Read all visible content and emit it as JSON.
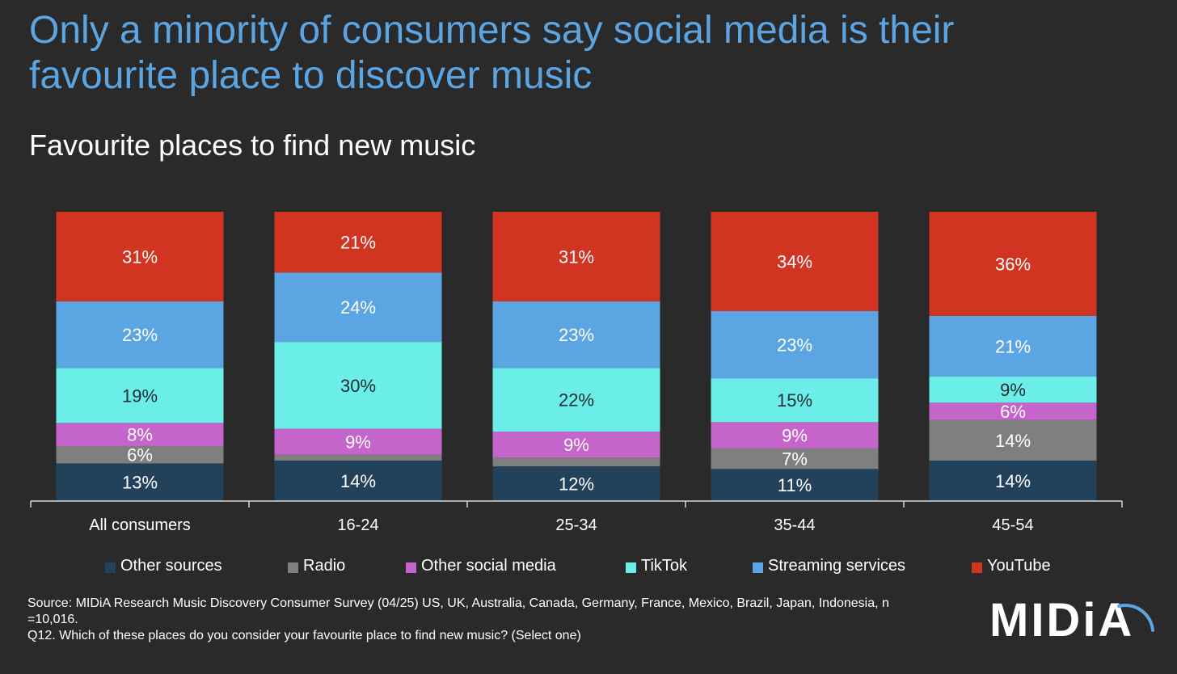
{
  "header": {
    "title": "Only a minority of consumers say social media is their favourite place to discover music",
    "subtitle": "Favourite places to find new music"
  },
  "chart_data": {
    "type": "bar",
    "stacked": true,
    "percent_stacked": true,
    "categories": [
      "All consumers",
      "16-24",
      "25-34",
      "35-44",
      "45-54"
    ],
    "series": [
      {
        "name": "Other sources",
        "color": "#22415a",
        "values": [
          13,
          14,
          12,
          11,
          14
        ],
        "labels": [
          "13%",
          "14%",
          "12%",
          "11%",
          "14%"
        ]
      },
      {
        "name": "Radio",
        "color": "#7f7f7f",
        "values": [
          6,
          2,
          3,
          7,
          14
        ],
        "labels": [
          "6%",
          "",
          "",
          "7%",
          "14%"
        ]
      },
      {
        "name": "Other social media",
        "color": "#c564cb",
        "values": [
          8,
          9,
          9,
          9,
          6
        ],
        "labels": [
          "8%",
          "9%",
          "9%",
          "9%",
          "6%"
        ]
      },
      {
        "name": "TikTok",
        "color": "#6ceee8",
        "values": [
          19,
          30,
          22,
          15,
          9
        ],
        "labels": [
          "19%",
          "30%",
          "22%",
          "15%",
          "9%"
        ]
      },
      {
        "name": "Streaming services",
        "color": "#5ba5e3",
        "values": [
          23,
          24,
          23,
          23,
          21
        ],
        "labels": [
          "23%",
          "24%",
          "23%",
          "23%",
          "21%"
        ]
      },
      {
        "name": "YouTube",
        "color": "#d13420",
        "values": [
          31,
          21,
          31,
          34,
          36
        ],
        "labels": [
          "31%",
          "21%",
          "31%",
          "34%",
          "36%"
        ]
      }
    ],
    "grid": false,
    "legend_position": "bottom"
  },
  "footer": {
    "source_line": "Source: MIDiA Research Music Discovery Consumer Survey (04/25) US, UK, Australia, Canada, Germany, France, Mexico, Brazil, Japan, Indonesia, n =10,016.",
    "question_line": "Q12. Which of these places do you consider your favourite place to find new music? (Select one)",
    "logo_text": "MIDiA"
  }
}
